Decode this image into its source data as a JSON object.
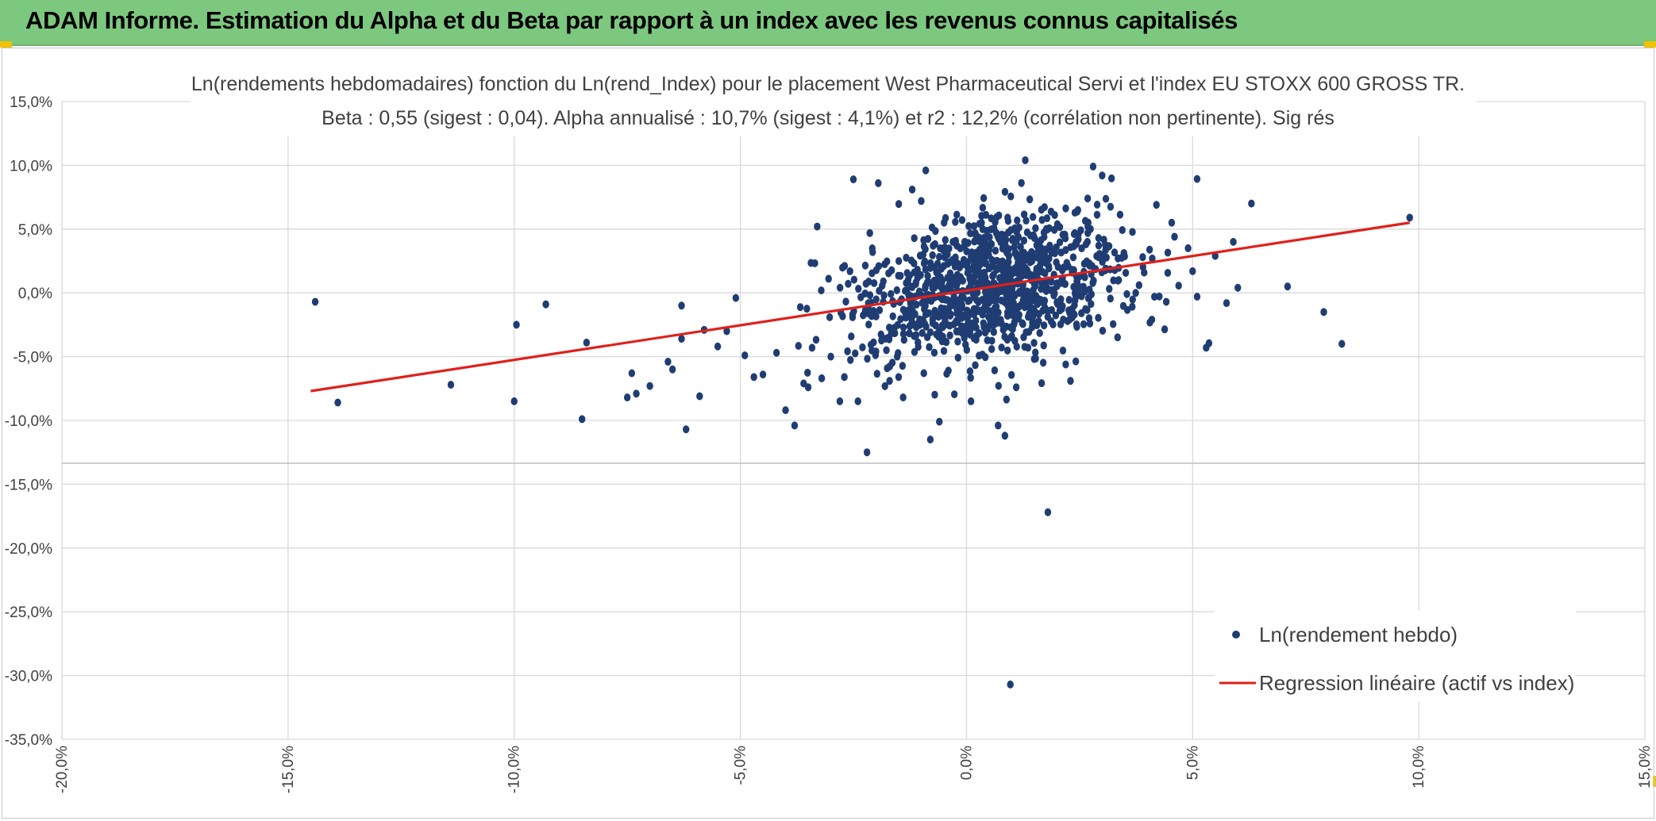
{
  "banner": {
    "title": "ADAM Informe. Estimation du Alpha et du Beta par rapport à un index avec les revenus connus capitalisés",
    "background": "#7dc87f",
    "corner_color": "#f2c200"
  },
  "chart_data": {
    "type": "scatter",
    "title": "Ln(rendements hebdomadaires) fonction du Ln(rend_Index) pour le placement West Pharmaceutical Servi et l'index EU STOXX 600 GROSS TR.",
    "subtitle": "Beta : 0,55 (sigest : 0,04). Alpha annualisé : 10,7% (sigest : 4,1%) et r2 : 12,2% (corrélation non pertinente). Sig rés",
    "xlabel": "",
    "ylabel": "",
    "xlim": [
      -20,
      15
    ],
    "ylim": [
      -35,
      15
    ],
    "x_ticks": [
      -20,
      -15,
      -10,
      -5,
      0,
      5,
      10,
      15
    ],
    "y_ticks": [
      15,
      10,
      5,
      0,
      -5,
      -10,
      -15,
      -20,
      -25,
      -30,
      -35
    ],
    "x_tick_labels": [
      "-20,0%",
      "-15,0%",
      "-10,0%",
      "-5,0%",
      "0,0%",
      "5,0%",
      "10,0%",
      "15,0%"
    ],
    "y_tick_labels": [
      "15,0%",
      "10,0%",
      "5,0%",
      "0,0%",
      "-5,0%",
      "-10,0%",
      "-15,0%",
      "-20,0%",
      "-25,0%",
      "-30,0%",
      "-35,0%"
    ],
    "grid": true,
    "legend_position": "bottom-right",
    "series": [
      {
        "name": "Ln(rendement hebdo)",
        "kind": "scatter",
        "color": "#1f3d73",
        "points": [
          [
            -14.4,
            -0.7
          ],
          [
            -13.9,
            -8.6
          ],
          [
            -11.4,
            -7.2
          ],
          [
            -10.0,
            -8.5
          ],
          [
            -9.95,
            -2.5
          ],
          [
            -9.3,
            -0.9
          ],
          [
            -8.4,
            -3.9
          ],
          [
            -8.5,
            -9.9
          ],
          [
            -7.4,
            -6.3
          ],
          [
            -7.5,
            -8.2
          ],
          [
            -7.3,
            -7.9
          ],
          [
            -7.0,
            -7.3
          ],
          [
            -6.6,
            -5.4
          ],
          [
            -6.5,
            -6.0
          ],
          [
            -6.3,
            -1.0
          ],
          [
            -6.3,
            -3.6
          ],
          [
            -6.2,
            -10.7
          ],
          [
            -5.9,
            -8.1
          ],
          [
            -5.8,
            -2.9
          ],
          [
            -5.5,
            -4.2
          ],
          [
            -5.3,
            -3.0
          ],
          [
            -5.1,
            -0.4
          ],
          [
            -4.9,
            -4.9
          ],
          [
            -4.7,
            -6.6
          ],
          [
            -4.5,
            -6.4
          ],
          [
            -4.2,
            -4.7
          ],
          [
            -4.0,
            -9.2
          ],
          [
            -3.8,
            -10.4
          ],
          [
            -3.6,
            -7.1
          ],
          [
            -3.5,
            -7.4
          ],
          [
            -3.3,
            5.2
          ],
          [
            -3.2,
            -6.7
          ],
          [
            -3.0,
            -5.0
          ],
          [
            -2.8,
            -8.5
          ],
          [
            -2.7,
            -6.6
          ],
          [
            -2.5,
            8.9
          ],
          [
            -2.4,
            -8.5
          ],
          [
            -2.2,
            -12.5
          ],
          [
            -2.0,
            -4.6
          ],
          [
            -1.95,
            8.6
          ],
          [
            -1.7,
            -6.9
          ],
          [
            -1.5,
            -6.6
          ],
          [
            -1.4,
            -8.2
          ],
          [
            -1.2,
            8.1
          ],
          [
            -1.0,
            7.2
          ],
          [
            -0.9,
            9.6
          ],
          [
            -0.8,
            -11.5
          ],
          [
            -0.6,
            -10.1
          ],
          [
            -0.4,
            -6.1
          ],
          [
            0.1,
            -8.5
          ],
          [
            0.7,
            -10.4
          ],
          [
            0.85,
            -11.2
          ],
          [
            0.97,
            -30.7
          ],
          [
            1.1,
            -7.4
          ],
          [
            1.3,
            10.4
          ],
          [
            1.8,
            -17.2
          ],
          [
            2.3,
            -6.9
          ],
          [
            2.8,
            9.9
          ],
          [
            3.0,
            9.2
          ],
          [
            4.2,
            6.9
          ],
          [
            5.3,
            -4.3
          ],
          [
            6.0,
            0.4
          ],
          [
            6.3,
            7.0
          ],
          [
            7.1,
            0.5
          ],
          [
            7.9,
            -1.5
          ],
          [
            8.3,
            -4.0
          ],
          [
            9.8,
            5.9
          ],
          [
            5.0,
            1.7
          ],
          [
            5.5,
            2.9
          ],
          [
            5.75,
            -0.8
          ],
          [
            5.1,
            -0.3
          ],
          [
            4.6,
            4.4
          ],
          [
            5.9,
            4.0
          ],
          [
            4.9,
            3.5
          ],
          [
            4.1,
            -2.1
          ]
        ]
      },
      {
        "name": "Regression linéaire (actif vs index)",
        "kind": "line",
        "color": "#e0201b",
        "x": [
          -14.5,
          9.8
        ],
        "y": [
          -7.7,
          5.5
        ]
      }
    ]
  }
}
